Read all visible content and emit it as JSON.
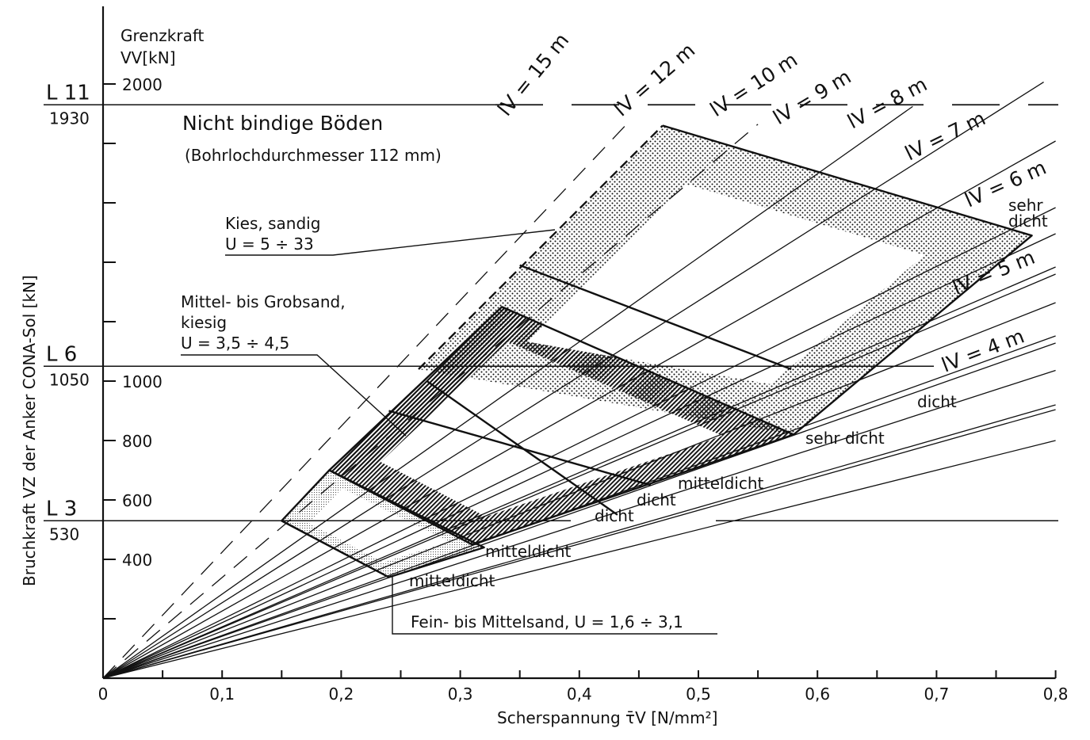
{
  "chart_data": {
    "type": "line",
    "title": "Nicht bindige Böden",
    "subtitle": "(Bohrlochdurchmesser 112 mm)",
    "xlabel": "Scherspannung τ̄V [N/mm²]",
    "ylabel": "Bruchkraft  VZ  der Anker   CONA-Sol   [kN]",
    "ylabel2": [
      "Grenzkraft",
      "VV[kN]"
    ],
    "xlim": [
      0,
      0.8
    ],
    "ylim": [
      0,
      2000
    ],
    "xticks": [
      0,
      0.1,
      0.2,
      0.3,
      0.4,
      0.5,
      0.6,
      0.7,
      0.8
    ],
    "xtick_labels": [
      "0",
      "0,1",
      "0,2",
      "0,3",
      "0,4",
      "0,5",
      "0,6",
      "0,7",
      "0,8"
    ],
    "yticks": [
      400,
      600,
      800,
      1000,
      2000
    ],
    "ytick_labels": [
      "400",
      "600",
      "800",
      "1000",
      "2000"
    ],
    "reference_lines": [
      {
        "name": "L 11",
        "value": 1930,
        "value_label": "1930"
      },
      {
        "name": "L 6",
        "value": 1050,
        "value_label": "1050"
      },
      {
        "name": "L 3",
        "value": 530,
        "value_label": "530"
      }
    ],
    "anchor_lengths": [
      {
        "label": "lV = 4 m",
        "slope": 1130
      },
      {
        "label": "lV = 5 m",
        "slope": 1410
      },
      {
        "label": "lV = 6 m",
        "slope": 1700
      },
      {
        "label": "lV = 7 m",
        "slope": 1980
      },
      {
        "label": "lV = 8 m",
        "slope": 2260
      },
      {
        "label": "lV = 9 m",
        "slope": 2540
      },
      {
        "label": "lV = 10 m",
        "slope": 2830
      },
      {
        "label": "lV = 12 m",
        "slope": 3390
      },
      {
        "label": "lV = 15 m",
        "slope": 4240
      }
    ],
    "soil_zones": [
      {
        "name": "Fein- bis Mittelsand, U = 1,6 ÷ 3,1",
        "texture": "fine-gray",
        "boundary": [
          [
            0.15,
            530
          ],
          [
            0.19,
            700
          ],
          [
            0.32,
            440
          ],
          [
            0.24,
            340
          ]
        ],
        "labels": [
          "mitteldicht",
          "dicht"
        ]
      },
      {
        "name": "Mittel- bis Grobsand, kiesig U = 3,5 ÷ 4,5",
        "texture": "hatched",
        "boundary": [
          [
            0.19,
            700
          ],
          [
            0.335,
            1250
          ],
          [
            0.58,
            820
          ],
          [
            0.31,
            450
          ]
        ],
        "labels": [
          "mitteldicht",
          "dicht",
          "mitteldicht",
          "dicht",
          "sehr dicht"
        ]
      },
      {
        "name": "Kies, sandig U = 5 ÷ 33",
        "texture": "dotted",
        "boundary": [
          [
            0.265,
            1040
          ],
          [
            0.47,
            1860
          ],
          [
            0.78,
            1490
          ],
          [
            0.58,
            820
          ]
        ],
        "labels": [
          "dicht",
          "sehr dicht"
        ]
      }
    ]
  }
}
